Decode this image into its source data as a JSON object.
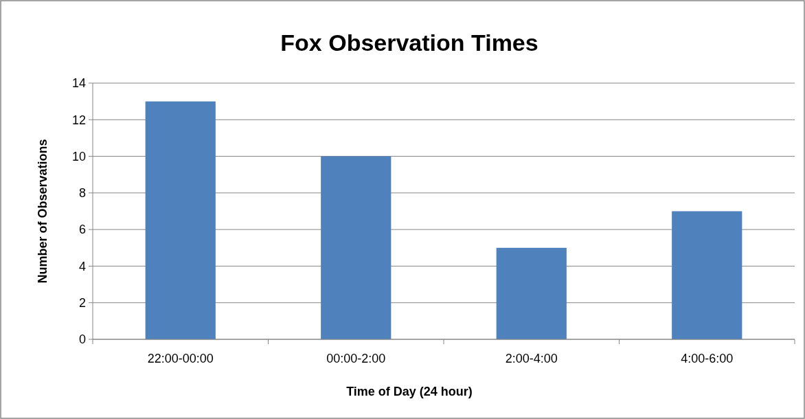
{
  "chart_data": {
    "type": "bar",
    "title": "Fox Observation Times",
    "xlabel": "Time of Day (24 hour)",
    "ylabel": "Number of Observations",
    "categories": [
      "22:00-00:00",
      "00:00-2:00",
      "2:00-4:00",
      "4:00-6:00"
    ],
    "values": [
      13,
      10,
      5,
      7
    ],
    "color": "#4f81bd",
    "ylim": [
      0,
      14
    ],
    "yticks": [
      0,
      2,
      4,
      6,
      8,
      10,
      12,
      14
    ],
    "grid": "y"
  }
}
